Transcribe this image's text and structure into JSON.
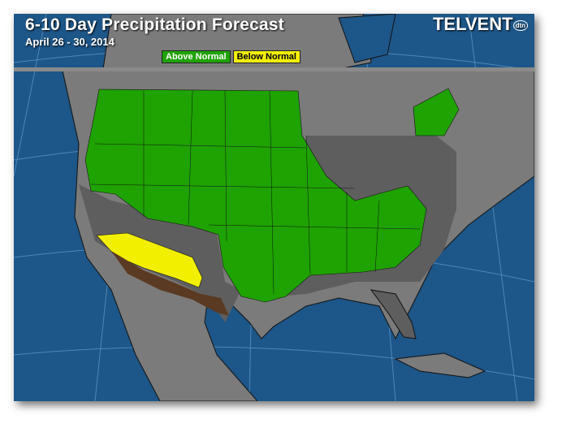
{
  "header": {
    "title": "6-10 Day Precipitation Forecast",
    "subtitle": "April 26 - 30, 2014",
    "logo": "TELVENT",
    "logo_badge": "dtn"
  },
  "legend": [
    {
      "label": "Above Normal",
      "color": "#1fa300"
    },
    {
      "label": "Below Normal",
      "color": "#f2f000"
    }
  ],
  "colors": {
    "ocean": "#1d5688",
    "land": "#7b7b7b",
    "normal_zone": "#5e5e5e",
    "above": "#1fa300",
    "below": "#f2f000",
    "border_zone": "#5a3a22"
  }
}
